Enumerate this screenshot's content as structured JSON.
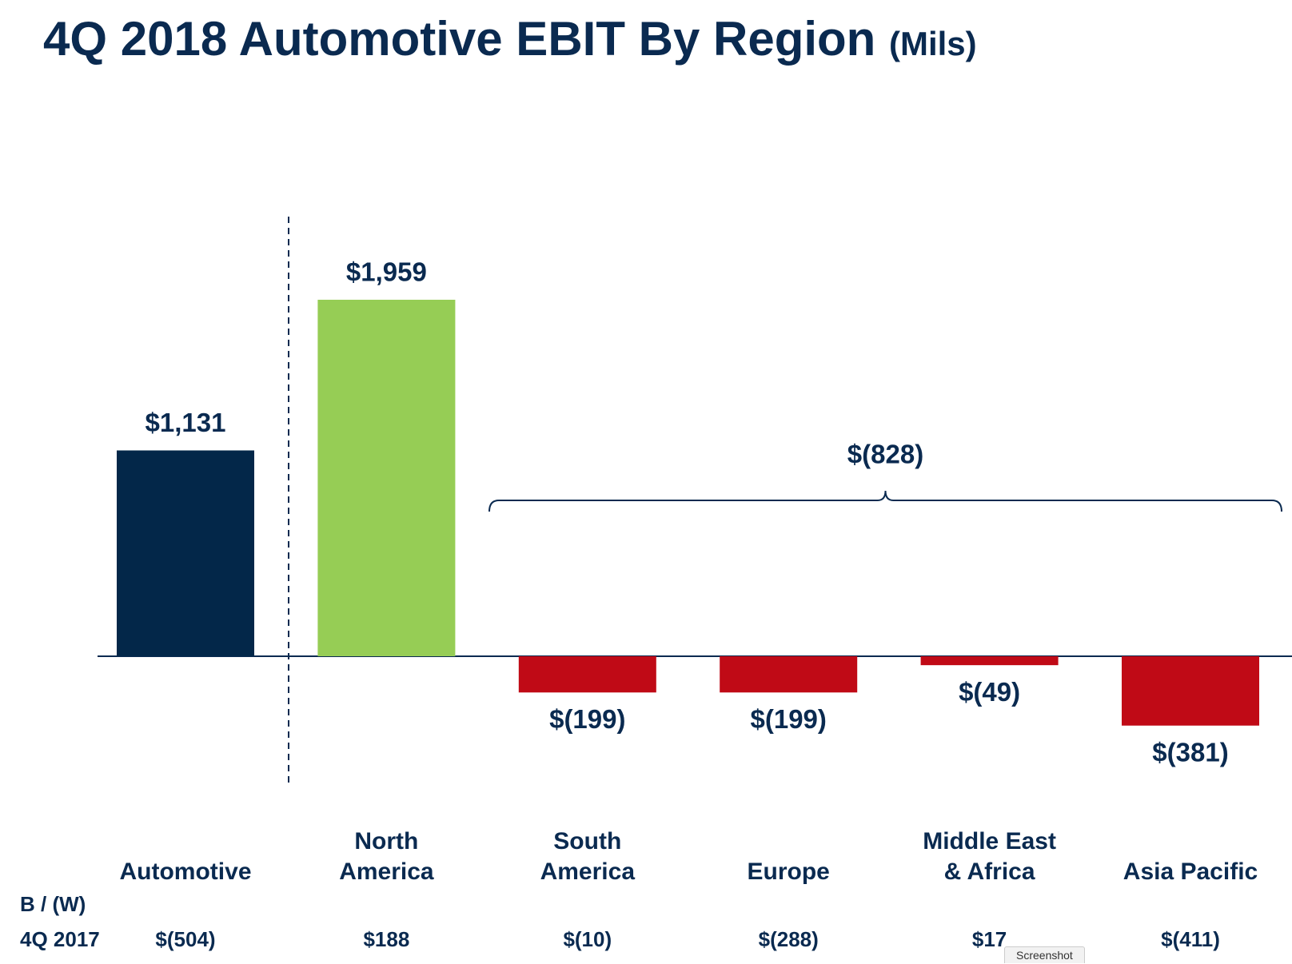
{
  "chart_data": {
    "type": "bar",
    "title": "4Q 2018 Automotive EBIT By Region",
    "title_unit": "(Mils)",
    "categories": [
      "Automotive",
      "North America",
      "South America",
      "Europe",
      "Middle East & Africa",
      "Asia Pacific"
    ],
    "values": [
      1131,
      1959,
      -199,
      -199,
      -49,
      -381
    ],
    "value_labels": [
      "$1,131",
      "$1,959",
      "$(199)",
      "$(199)",
      "$(49)",
      "$(381)"
    ],
    "colors": [
      "#032749",
      "#96cd55",
      "#c00a16",
      "#c00a16",
      "#c00a16",
      "#c00a16"
    ],
    "bracket": {
      "value": -828,
      "label": "$(828)"
    },
    "comparison": {
      "label": "B / (W)",
      "period": "4Q 2017",
      "values": [
        -504,
        188,
        -10,
        -288,
        17,
        -411
      ],
      "value_labels": [
        "$(504)",
        "$188",
        "$(10)",
        "$(288)",
        "$17",
        "$(411)"
      ]
    }
  },
  "tooltip": "Screenshot"
}
